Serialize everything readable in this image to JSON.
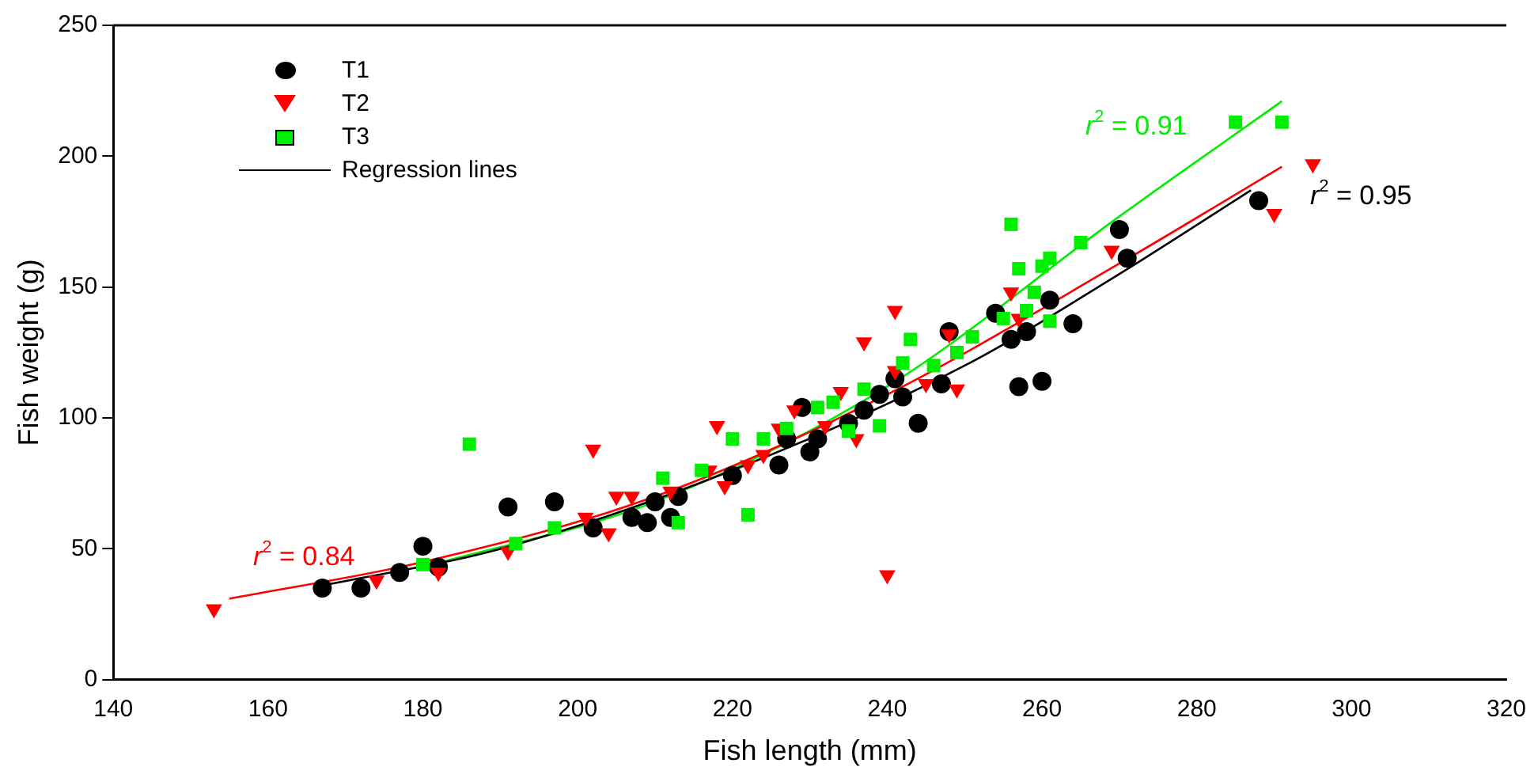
{
  "chart_data": {
    "type": "scatter",
    "xlabel": "Fish length (mm)",
    "ylabel": "Fish weight (g)",
    "xlim": [
      140,
      320
    ],
    "xticks": [
      140,
      160,
      180,
      200,
      220,
      240,
      260,
      280,
      300,
      320
    ],
    "ylim": [
      0,
      250
    ],
    "yticks": [
      0,
      50,
      100,
      150,
      200,
      250
    ],
    "grid": false,
    "legend": "top left",
    "series": [
      {
        "name": "T1",
        "color": "#000000",
        "marker": "circle",
        "x": [
          167,
          172,
          177,
          180,
          182,
          191,
          197,
          202,
          207,
          209,
          210,
          212,
          213,
          220,
          226,
          227,
          229,
          230,
          231,
          235,
          237,
          239,
          241,
          242,
          244,
          247,
          248,
          254,
          256,
          257,
          258,
          260,
          261,
          264,
          270,
          271,
          288
        ],
        "values": [
          35,
          35,
          41,
          51,
          43,
          66,
          68,
          58,
          62,
          60,
          68,
          62,
          70,
          78,
          82,
          92,
          104,
          87,
          92,
          98,
          103,
          109,
          115,
          108,
          98,
          113,
          133,
          140,
          130,
          112,
          133,
          114,
          145,
          136,
          172,
          161,
          183
        ]
      },
      {
        "name": "T2",
        "color": "#ff0000",
        "marker": "triangle",
        "x": [
          153,
          174,
          182,
          191,
          201,
          202,
          204,
          205,
          207,
          212,
          217,
          218,
          219,
          222,
          224,
          226,
          228,
          232,
          234,
          236,
          237,
          240,
          241,
          241,
          245,
          248,
          249,
          256,
          257,
          269,
          290,
          295
        ],
        "values": [
          27,
          38,
          41,
          49,
          62,
          88,
          56,
          70,
          70,
          72,
          80,
          97,
          74,
          82,
          86,
          96,
          103,
          97,
          110,
          92,
          129,
          40,
          141,
          118,
          113,
          132,
          111,
          148,
          138,
          164,
          178,
          197
        ]
      },
      {
        "name": "T3",
        "color": "#00ee00",
        "marker": "square",
        "x": [
          180,
          186,
          192,
          197,
          211,
          213,
          216,
          220,
          222,
          224,
          227,
          231,
          233,
          235,
          237,
          239,
          242,
          243,
          246,
          249,
          251,
          255,
          256,
          257,
          258,
          259,
          260,
          261,
          261,
          265,
          285,
          291
        ],
        "values": [
          44,
          90,
          52,
          58,
          77,
          60,
          80,
          92,
          63,
          92,
          96,
          104,
          106,
          95,
          111,
          97,
          121,
          130,
          120,
          125,
          131,
          138,
          174,
          157,
          141,
          148,
          158,
          161,
          137,
          167,
          213,
          213
        ]
      },
      {
        "name": "Regression lines",
        "type": "line",
        "color": "#000000",
        "marker": "none",
        "x": [
          167,
          190,
          220,
          250,
          270,
          287
        ],
        "values": [
          36,
          50,
          80,
          120,
          155,
          187
        ]
      },
      {
        "type": "line",
        "color": "#ff0000",
        "marker": "none",
        "x": [
          155,
          180,
          210,
          240,
          270,
          291
        ],
        "values": [
          31,
          45,
          70,
          109,
          159,
          196
        ]
      },
      {
        "type": "line",
        "color": "#00ee00",
        "marker": "none",
        "x": [
          180,
          210,
          240,
          270,
          291
        ],
        "values": [
          43,
          68,
          112,
          177,
          221
        ]
      }
    ],
    "annotations": [
      "r$^{2}$ = 0.95",
      "r$^{2}$ = 0.84",
      "r$^{2}$ = 0.91"
    ]
  }
}
